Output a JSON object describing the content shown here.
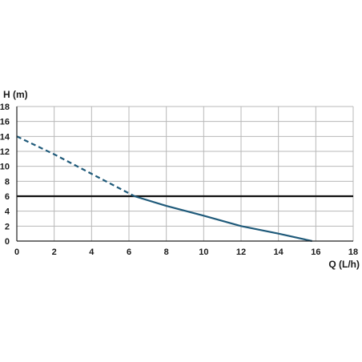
{
  "chart_data": {
    "type": "line",
    "xlabel": "Q (L/h)",
    "ylabel": "H (m)",
    "xlim": [
      0,
      18
    ],
    "ylim": [
      0,
      18
    ],
    "x_ticks": [
      0,
      2,
      4,
      6,
      8,
      10,
      12,
      14,
      16,
      18
    ],
    "y_ticks": [
      0,
      2,
      4,
      6,
      8,
      10,
      12,
      14,
      16,
      18
    ],
    "grid": true,
    "series": [
      {
        "style": "dashed",
        "color": "#1f5a7a",
        "x": [
          0,
          2,
          4,
          6.3
        ],
        "y": [
          14,
          11.6,
          9,
          6
        ]
      },
      {
        "style": "solid",
        "color": "#1f5a7a",
        "x": [
          6.3,
          8,
          10,
          12,
          14,
          15.8
        ],
        "y": [
          6,
          4.7,
          3.4,
          2.0,
          1.0,
          0
        ]
      }
    ],
    "reference_lines": [
      {
        "orientation": "horizontal",
        "y": 6,
        "color": "#111111"
      }
    ],
    "colors": {
      "grid": "#b8b8b8",
      "axis": "#222222",
      "text": "#1a1a1a"
    }
  }
}
